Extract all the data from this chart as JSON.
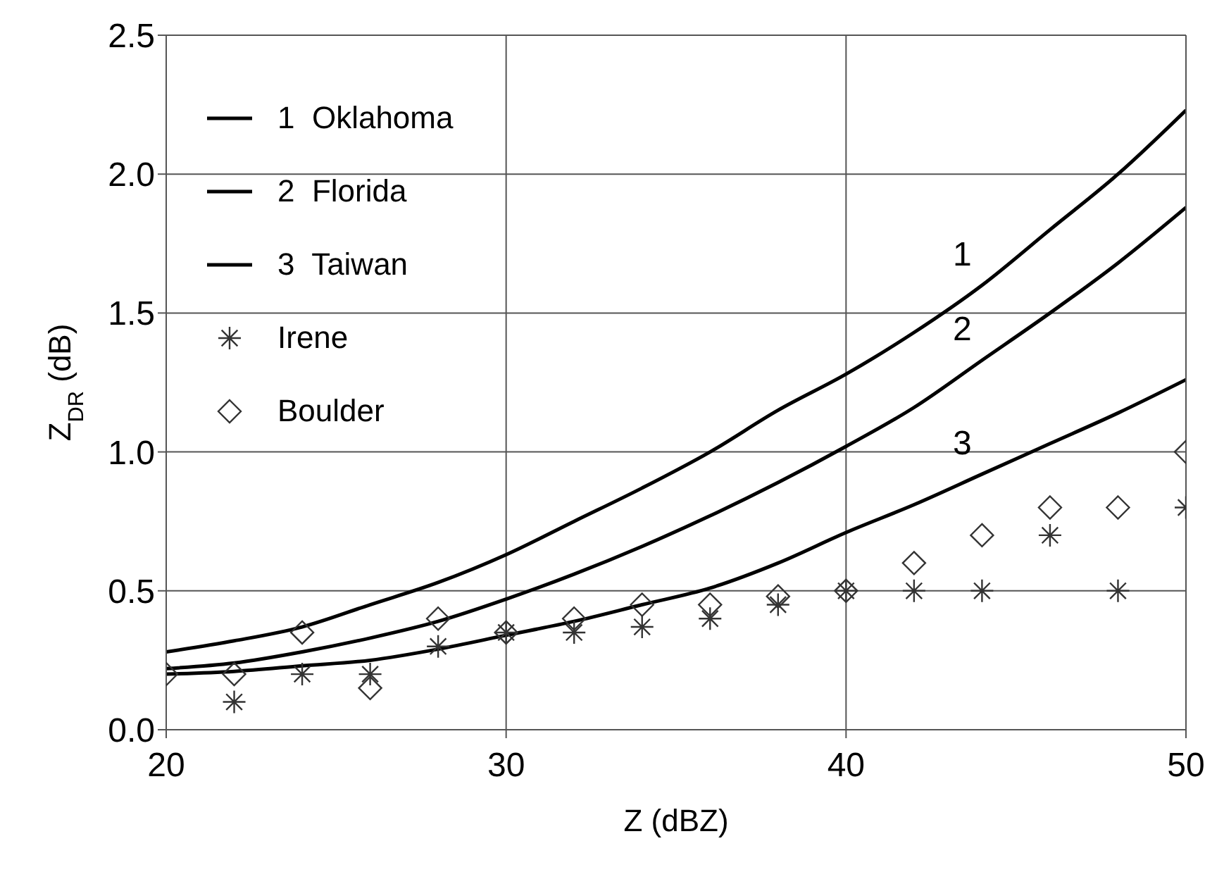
{
  "chart_data": {
    "type": "line",
    "xlabel": "Z (dBZ)",
    "ylabel": "Z$_{DR}$ (dB)",
    "xlim": [
      20,
      50
    ],
    "xticks": [
      20,
      30,
      40,
      50
    ],
    "ylim": [
      0,
      2.5
    ],
    "yticks": [
      {
        "value": 0,
        "label": "0.0"
      },
      0.5,
      {
        "value": 1,
        "label": "1.0"
      },
      1.5,
      {
        "value": 2,
        "label": "2.0"
      },
      2.5
    ],
    "grid": true,
    "legend": "top left",
    "line_style": "solid",
    "x": [
      20,
      22,
      24,
      26,
      28,
      30,
      32,
      34,
      36,
      38,
      40,
      42,
      44,
      46,
      48,
      50
    ],
    "series": [
      {
        "name": "1  Oklahoma",
        "color": "#000000",
        "marker": "none",
        "values": [
          0.28,
          0.32,
          0.37,
          0.45,
          0.53,
          0.63,
          0.75,
          0.87,
          1.0,
          1.15,
          1.28,
          1.43,
          1.6,
          1.8,
          2.0,
          2.23
        ]
      },
      {
        "name": "2  Florida",
        "color": "#000000",
        "marker": "none",
        "values": [
          0.22,
          0.24,
          0.28,
          0.33,
          0.39,
          0.47,
          0.56,
          0.66,
          0.77,
          0.89,
          1.02,
          1.16,
          1.33,
          1.5,
          1.68,
          1.88
        ]
      },
      {
        "name": "3  Taiwan",
        "color": "#000000",
        "marker": "none",
        "values": [
          0.2,
          0.21,
          0.23,
          0.25,
          0.29,
          0.34,
          0.39,
          0.45,
          0.51,
          0.6,
          0.71,
          0.81,
          0.92,
          1.03,
          1.14,
          1.26
        ]
      },
      {
        "name": "Irene",
        "type": "scatter",
        "color": "#333333",
        "marker": "cross",
        "x": [
          22,
          24,
          26,
          28,
          30,
          32,
          34,
          36,
          38,
          40,
          42,
          44,
          46,
          48,
          50
        ],
        "values": [
          0.1,
          0.2,
          0.2,
          0.3,
          0.35,
          0.35,
          0.37,
          0.4,
          0.45,
          0.5,
          0.5,
          0.5,
          0.7,
          0.5,
          0.8
        ]
      },
      {
        "name": "Boulder",
        "type": "scatter",
        "color": "#333333",
        "marker": "diamond",
        "values": [
          0.2,
          0.2,
          0.35,
          0.15,
          0.4,
          0.35,
          0.4,
          0.45,
          0.45,
          0.48,
          0.5,
          0.6,
          0.7,
          0.8,
          0.8,
          1.0
        ]
      }
    ],
    "annotations": [
      "1",
      "2",
      "3"
    ]
  }
}
